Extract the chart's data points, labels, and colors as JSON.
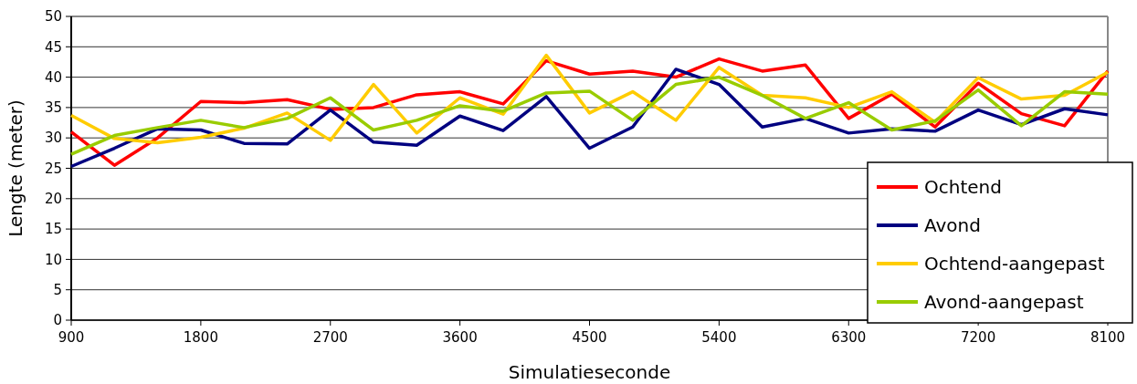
{
  "chart_data": {
    "type": "line",
    "xlabel": "Simulatieseconde",
    "ylabel": "Lengte (meter)",
    "x": [
      900,
      1200,
      1500,
      1800,
      2100,
      2400,
      2700,
      3000,
      3300,
      3600,
      3900,
      4200,
      4500,
      4800,
      5100,
      5400,
      5700,
      6000,
      6300,
      6600,
      6900,
      7200,
      7500,
      7800,
      8100
    ],
    "xlim": [
      900,
      8100
    ],
    "xticks": [
      900,
      1800,
      2700,
      3600,
      4500,
      5400,
      6300,
      7200,
      8100
    ],
    "ylim": [
      0,
      50
    ],
    "yticks": [
      0,
      5,
      10,
      15,
      20,
      25,
      30,
      35,
      40,
      45,
      50
    ],
    "grid": "y",
    "legend": "bottom right",
    "marker": "none",
    "line_style": "solid",
    "series": [
      {
        "name": "Ochtend",
        "color": "#ff0000",
        "values": [
          31,
          25.5,
          30,
          36,
          35.8,
          36.3,
          34.7,
          35,
          37.1,
          37.6,
          35.6,
          42.7,
          40.5,
          41,
          40,
          43,
          41,
          42,
          33.2,
          37.2,
          31.8,
          39,
          34,
          32,
          41
        ]
      },
      {
        "name": "Avond",
        "color": "#000080",
        "values": [
          25.3,
          28.3,
          31.5,
          31.3,
          29.1,
          29,
          34.6,
          29.3,
          28.8,
          33.6,
          31.2,
          36.8,
          28.3,
          31.8,
          41.3,
          38.8,
          31.8,
          33.2,
          30.8,
          31.5,
          31.1,
          34.6,
          32.2,
          34.8,
          33.8
        ]
      },
      {
        "name": "Ochtend-aangepast",
        "color": "#ffcc00",
        "values": [
          33.7,
          29.9,
          29.2,
          30.1,
          31.6,
          34.1,
          29.6,
          38.8,
          30.8,
          36.6,
          33.9,
          43.6,
          34.1,
          37.6,
          32.9,
          41.6,
          37,
          36.6,
          35,
          37.6,
          32.6,
          39.9,
          36.4,
          37,
          40.8
        ]
      },
      {
        "name": "Avond-aangepast",
        "color": "#99cc00",
        "values": [
          27.3,
          30.4,
          31.7,
          32.9,
          31.7,
          33.2,
          36.6,
          31.3,
          32.9,
          35.3,
          34.4,
          37.4,
          37.7,
          32.9,
          38.8,
          40,
          37,
          33.2,
          35.8,
          31.3,
          32.8,
          37.9,
          32,
          37.6,
          37.2
        ]
      }
    ]
  }
}
